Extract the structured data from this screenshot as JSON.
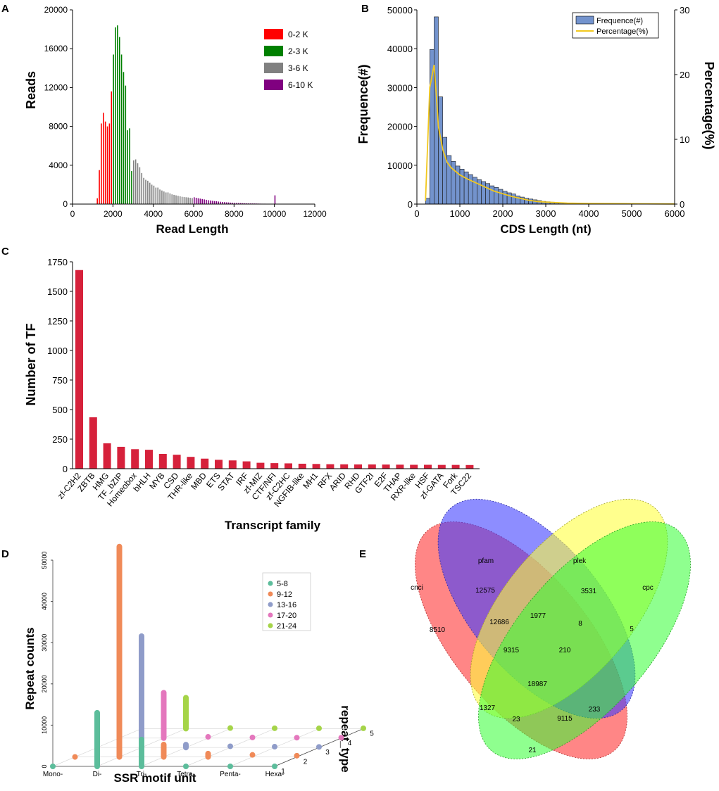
{
  "panel_letters": {
    "a": "A",
    "b": "B",
    "c": "C",
    "d": "D",
    "e": "E"
  },
  "colors": {
    "red": "#ff0000",
    "green": "#008000",
    "grey": "#808080",
    "purple": "#800080",
    "cds_bar": "#7393cd",
    "cds_line": "#f2c81e",
    "tf_bar": "#d6213b",
    "ssr_5_8": "#5cbd9b",
    "ssr_9_12": "#f08a58",
    "ssr_13_16": "#8f9cc9",
    "ssr_17_20": "#e477bd",
    "ssr_21_24": "#a5d448",
    "venn_cnci": "#ff3b3b",
    "venn_pfam": "#3a3aff",
    "venn_plek": "#ffff3a",
    "venn_cpc": "#33ff33"
  },
  "chart_data": [
    {
      "panel": "A",
      "type": "bar",
      "title": "",
      "xlabel": "Read Length",
      "ylabel": "Reads",
      "xlim": [
        0,
        12000
      ],
      "ylim": [
        0,
        20000
      ],
      "xticks": [
        "0",
        "2000",
        "4000",
        "6000",
        "8000",
        "10000",
        "12000"
      ],
      "yticks": [
        "0",
        "4000",
        "8000",
        "12000",
        "16000",
        "20000"
      ],
      "legend": {
        "position": "top-right",
        "labels": [
          "0-2 K",
          "2-3 K",
          "3-6 K",
          "6-10 K"
        ]
      },
      "bin_width": 100,
      "series": [
        {
          "name": "0-2 K",
          "x": [
            1200,
            1300,
            1400,
            1500,
            1600,
            1700,
            1800,
            1900
          ],
          "values": [
            600,
            3500,
            8300,
            9400,
            8500,
            8000,
            8300,
            11600
          ]
        },
        {
          "name": "2-3 K",
          "x": [
            2000,
            2100,
            2200,
            2300,
            2400,
            2500,
            2600,
            2700,
            2800,
            2900
          ],
          "values": [
            15400,
            18200,
            18400,
            17200,
            15400,
            13600,
            12200,
            7600,
            7800,
            3400
          ]
        },
        {
          "name": "3-6 K",
          "x": [
            3000,
            3100,
            3200,
            3300,
            3400,
            3500,
            3600,
            3700,
            3800,
            3900,
            4000,
            4100,
            4200,
            4300,
            4400,
            4500,
            4600,
            4700,
            4800,
            4900,
            5000,
            5100,
            5200,
            5300,
            5400,
            5500,
            5600,
            5700,
            5800,
            5900
          ],
          "values": [
            4500,
            4600,
            4200,
            3800,
            3200,
            2700,
            2500,
            2400,
            2200,
            2000,
            1900,
            1700,
            1700,
            1500,
            1400,
            1300,
            1200,
            1200,
            1100,
            1000,
            950,
            900,
            850,
            800,
            750,
            720,
            700,
            680,
            650,
            620
          ],
          "values_note": "approx"
        },
        {
          "name": "6-10 K",
          "x": [
            6000,
            6100,
            6200,
            6300,
            6400,
            6500,
            6600,
            6700,
            6800,
            6900,
            7000,
            7100,
            7200,
            7300,
            7400,
            7500,
            7600,
            7700,
            7800,
            7900,
            8000,
            8100,
            8200,
            8300,
            8400,
            8500,
            8600,
            8700,
            8800,
            8900,
            9000,
            9100,
            9200,
            9300,
            9400,
            9500,
            9600,
            9700,
            9800,
            9900,
            10000
          ],
          "values": [
            700,
            650,
            600,
            560,
            520,
            480,
            440,
            400,
            370,
            340,
            310,
            290,
            260,
            240,
            220,
            200,
            180,
            170,
            150,
            140,
            130,
            120,
            110,
            100,
            90,
            85,
            80,
            75,
            70,
            65,
            60,
            55,
            50,
            45,
            40,
            40,
            35,
            30,
            30,
            30,
            900
          ]
        }
      ]
    },
    {
      "panel": "B",
      "type": "bar",
      "xlabel": "CDS Length (nt)",
      "ylabel": "Frequence(#)",
      "ylabel2": "Percentage(%)",
      "xlim": [
        0,
        6000
      ],
      "ylim": [
        0,
        50000
      ],
      "y2lim": [
        0,
        30
      ],
      "xticks": [
        "0",
        "1000",
        "2000",
        "3000",
        "4000",
        "5000",
        "6000"
      ],
      "yticks": [
        "0",
        "10000",
        "20000",
        "30000",
        "40000",
        "50000"
      ],
      "y2ticks": [
        "0",
        "10",
        "20",
        "30"
      ],
      "legend": {
        "position": "top-right",
        "labels": [
          "Frequence(#)",
          "Percentage(%)"
        ]
      },
      "bin_width": 100,
      "bars": {
        "x": [
          200,
          300,
          400,
          500,
          600,
          700,
          800,
          900,
          1000,
          1100,
          1200,
          1300,
          1400,
          1500,
          1600,
          1700,
          1800,
          1900,
          2000,
          2100,
          2200,
          2300,
          2400,
          2500,
          2600,
          2700,
          2800,
          2900,
          3000,
          3100,
          3200,
          3300,
          3400,
          3500
        ],
        "values": [
          1500,
          39800,
          48200,
          27600,
          17200,
          12500,
          11000,
          9800,
          9000,
          8300,
          7600,
          6900,
          6300,
          5800,
          5300,
          4700,
          4300,
          3800,
          3300,
          2900,
          2600,
          2100,
          1800,
          1500,
          1300,
          1100,
          900,
          700,
          600,
          500,
          400,
          300,
          250,
          200
        ]
      },
      "line": {
        "name": "Percentage(%)",
        "x": [
          200,
          300,
          400,
          450,
          500,
          600,
          700,
          800,
          1000,
          1200,
          1400,
          1600,
          1800,
          2000,
          2200,
          2400,
          2600,
          2800,
          3000,
          3500,
          4000,
          5000,
          6000
        ],
        "values": [
          0.5,
          18,
          21.5,
          17,
          12,
          8.5,
          6.5,
          5.6,
          4.5,
          3.8,
          3.2,
          2.6,
          2.0,
          1.6,
          1.2,
          0.9,
          0.6,
          0.4,
          0.3,
          0.15,
          0.1,
          0.05,
          0.02
        ]
      }
    },
    {
      "panel": "C",
      "type": "bar",
      "xlabel": "Transcript family",
      "ylabel": "Number of TF",
      "ylim": [
        0,
        1750
      ],
      "yticks": [
        "0",
        "250",
        "500",
        "750",
        "1000",
        "1250",
        "1500",
        "1750"
      ],
      "categories": [
        "zf-C2H2",
        "ZBTB",
        "HMG",
        "TF_bZIP",
        "Homeobox",
        "bHLH",
        "MYB",
        "CSD",
        "THR-like",
        "MBD",
        "ETS",
        "STAT",
        "IRF",
        "zf-MIZ",
        "CTF/NFI",
        "zf-C2HC",
        "NGFIB-like",
        "MH1",
        "RFX",
        "ARID",
        "RHD",
        "GTF2I",
        "E2F",
        "THAP",
        "RXR-like",
        "HSF",
        "zf-GATA",
        "Fork",
        "TSC22"
      ],
      "values": [
        1680,
        435,
        215,
        185,
        165,
        160,
        125,
        118,
        100,
        85,
        75,
        70,
        62,
        50,
        47,
        45,
        42,
        40,
        38,
        37,
        36,
        36,
        35,
        34,
        33,
        33,
        32,
        32,
        31
      ]
    },
    {
      "panel": "D",
      "type": "bar",
      "subtype": "3d-bar",
      "xlabel": "SSR motif unit",
      "ylabel": "Repeat counts",
      "zlabel": "repeat_type",
      "categories": [
        "Mono-",
        "Di-",
        "Tri-",
        "Tetra-",
        "Penta-",
        "Hexa-"
      ],
      "zticks": [
        "1",
        "2",
        "3",
        "4",
        "5"
      ],
      "yticks": [
        "0",
        "10000",
        "20000",
        "30000",
        "40000",
        "50000"
      ],
      "ylim": [
        0,
        50000
      ],
      "legend": {
        "position": "top-right",
        "labels": [
          "5-8",
          "9-12",
          "13-16",
          "17-20",
          "21-24"
        ]
      },
      "series": [
        {
          "name": "5-8",
          "values": [
            0,
            13000,
            6500,
            0,
            0,
            0
          ]
        },
        {
          "name": "9-12",
          "values": [
            0,
            51000,
            3000,
            800,
            500,
            300
          ]
        },
        {
          "name": "13-16",
          "values": [
            0,
            27000,
            700,
            300,
            200,
            150
          ]
        },
        {
          "name": "17-20",
          "values": [
            0,
            11000,
            300,
            150,
            100,
            100
          ]
        },
        {
          "name": "21-24",
          "values": [
            0,
            7500,
            150,
            100,
            80,
            80
          ]
        }
      ]
    },
    {
      "panel": "E",
      "type": "venn",
      "sets": [
        "cnci",
        "pfam",
        "plek",
        "cpc"
      ],
      "regions": {
        "cnci_only": "8510",
        "pfam_only": "12575",
        "plek_only": "3531",
        "cpc_only": "5",
        "cnci_pfam": "12686",
        "pfam_plek": "1977",
        "plek_cpc": "8",
        "cnci_plek": "1327",
        "pfam_cpc": "233",
        "cnci_cpc": "21",
        "cnci_pfam_plek": "9315",
        "pfam_plek_cpc": "210",
        "cnci_pfam_cpc": "9115",
        "cnci_plek_cpc": "23",
        "all": "18987"
      }
    }
  ]
}
